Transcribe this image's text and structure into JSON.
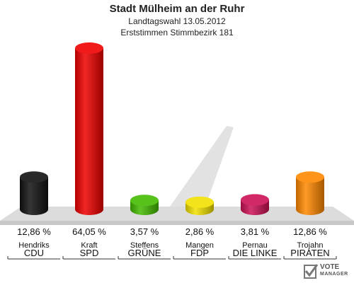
{
  "header": {
    "title": "Stadt Mülheim an der Ruhr",
    "subtitle": "Landtagswahl 13.05.2012",
    "subtitle2": "Erststimmen Stimmbezirk 181"
  },
  "logo": {
    "line1": "VOTE",
    "line2": "MANAGER"
  },
  "chart_data": {
    "type": "bar",
    "categories": [
      "CDU",
      "SPD",
      "GRÜNE",
      "FDP",
      "DIE LINKE",
      "PIRATEN"
    ],
    "candidates": [
      "Hendriks",
      "Kraft",
      "Steffens",
      "Mangen",
      "Pernau",
      "Trojahn"
    ],
    "values": [
      12.86,
      64.05,
      3.57,
      2.86,
      3.81,
      12.86
    ],
    "value_labels": [
      "12,86 %",
      "64,05 %",
      "3,57 %",
      "2,86 %",
      "3,81 %",
      "12,86 %"
    ],
    "colors": [
      "#111111",
      "#ee0000",
      "#44bb00",
      "#f2e000",
      "#cc1155",
      "#ff8800"
    ],
    "ylim": [
      0,
      64.05
    ],
    "grid": false,
    "legend": "none"
  }
}
